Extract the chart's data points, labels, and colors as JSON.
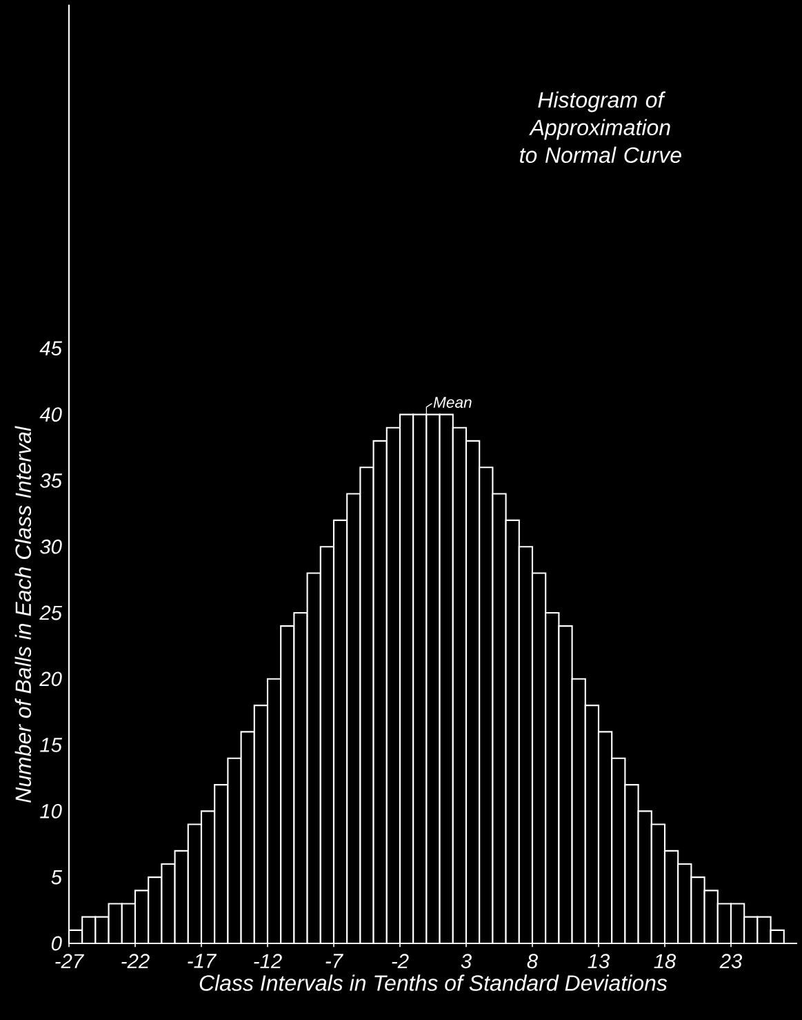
{
  "chart_data": {
    "type": "histogram",
    "title": "Histogram of Approximation to Normal Curve",
    "xlabel": "Class Intervals in Tenths of Standard Deviations",
    "ylabel": "Number of Balls in Each Class Interval",
    "bins": [
      -27,
      -26,
      -25,
      -24,
      -23,
      -22,
      -21,
      -20,
      -19,
      -18,
      -17,
      -16,
      -15,
      -14,
      -13,
      -12,
      -11,
      -10,
      -9,
      -8,
      -7,
      -6,
      -5,
      -4,
      -3,
      -2,
      -1,
      0,
      1,
      2,
      3,
      4,
      5,
      6,
      7,
      8,
      9,
      10,
      11,
      12,
      13,
      14,
      15,
      16,
      17,
      18,
      19,
      20,
      21,
      22,
      23,
      24,
      25,
      26,
      27
    ],
    "values": [
      1,
      2,
      2,
      3,
      3,
      4,
      5,
      6,
      7,
      9,
      10,
      12,
      14,
      16,
      18,
      20,
      24,
      25,
      28,
      30,
      32,
      34,
      36,
      38,
      39,
      40,
      40,
      40,
      40,
      39,
      38,
      36,
      34,
      32,
      30,
      28,
      25,
      24,
      20,
      18,
      16,
      14,
      12,
      10,
      9,
      7,
      6,
      5,
      4,
      3,
      3,
      2,
      2,
      1
    ],
    "color": "#ffffff",
    "xlim": [
      -27,
      28
    ],
    "ylim": [
      0,
      71
    ],
    "xticks": [
      -27,
      -22,
      -17,
      -12,
      -7,
      -2,
      3,
      8,
      13,
      18,
      23
    ],
    "yticks": [
      0,
      5,
      10,
      15,
      20,
      25,
      30,
      35,
      40,
      45
    ],
    "annotations": [
      {
        "text": "Mean",
        "x": 0,
        "y": 40
      }
    ]
  }
}
